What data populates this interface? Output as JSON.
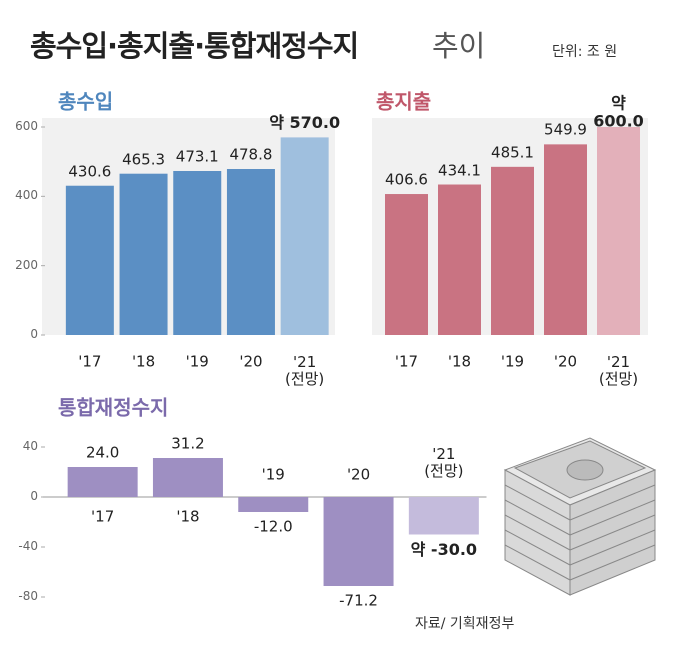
{
  "title": "총수입·총지출·통합재정수지",
  "title_suffix": "추이",
  "unit": "단위: 조 원",
  "source": "자료/ 기획재정부",
  "chart_data": [
    {
      "type": "bar",
      "title": "총수입",
      "categories": [
        "'17",
        "'18",
        "'19",
        "'20",
        "'21\n(전망)"
      ],
      "values": [
        430.6,
        465.3,
        473.1,
        478.8,
        570.0
      ],
      "value_labels": [
        "430.6",
        "465.3",
        "473.1",
        "478.8",
        "약 570.0"
      ],
      "colors": [
        "#5b8fc4",
        "#5b8fc4",
        "#5b8fc4",
        "#5b8fc4",
        "#9fbfde"
      ],
      "ylim": [
        0,
        600
      ],
      "yticks": [
        0,
        200,
        400,
        600
      ],
      "grid": false
    },
    {
      "type": "bar",
      "title": "총지출",
      "categories": [
        "'17",
        "'18",
        "'19",
        "'20",
        "'21\n(전망)"
      ],
      "values": [
        406.6,
        434.1,
        485.1,
        549.9,
        600.0
      ],
      "value_labels": [
        "406.6",
        "434.1",
        "485.1",
        "549.9",
        "약 600.0"
      ],
      "colors": [
        "#c97382",
        "#c97382",
        "#c97382",
        "#c97382",
        "#e3b0ba"
      ],
      "ylim": [
        0,
        600
      ],
      "grid": false
    },
    {
      "type": "bar",
      "title": "통합재정수지",
      "categories": [
        "'17",
        "'18",
        "'19",
        "'20",
        "'21\n(전망)"
      ],
      "values": [
        24.0,
        31.2,
        -12.0,
        -71.2,
        -30.0
      ],
      "value_labels": [
        "24.0",
        "31.2",
        "-12.0",
        "-71.2",
        "약 -30.0"
      ],
      "colors": [
        "#9e8fc2",
        "#9e8fc2",
        "#9e8fc2",
        "#9e8fc2",
        "#c4bbdc"
      ],
      "ylim": [
        -80,
        40
      ],
      "yticks": [
        -80,
        -40,
        0,
        40
      ],
      "grid": false
    }
  ]
}
